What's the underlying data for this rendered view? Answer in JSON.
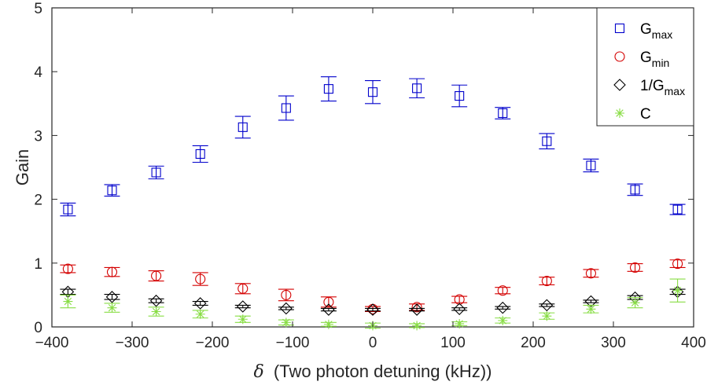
{
  "chart_data": {
    "type": "scatter",
    "xlabel_symbol": "δ",
    "xlabel": "(Two photon detuning (kHz))",
    "ylabel": "Gain",
    "xlim": [
      -400,
      400
    ],
    "ylim": [
      0,
      5
    ],
    "xticks": [
      -400,
      -300,
      -200,
      -100,
      0,
      100,
      200,
      300,
      400
    ],
    "yticks": [
      0,
      1,
      2,
      3,
      4,
      5
    ],
    "grid": false,
    "legend_position": "top-right",
    "x": [
      -380,
      -325,
      -270,
      -215,
      -162,
      -108,
      -55,
      0,
      55,
      108,
      162,
      217,
      272,
      327,
      380
    ],
    "series": [
      {
        "name": "G",
        "subscript": "max",
        "marker": "square",
        "color": "#0000cc",
        "values": [
          1.84,
          2.14,
          2.42,
          2.71,
          3.13,
          3.43,
          3.73,
          3.68,
          3.74,
          3.62,
          3.35,
          2.91,
          2.53,
          2.15,
          1.84
        ],
        "errors": [
          0.1,
          0.09,
          0.1,
          0.13,
          0.17,
          0.19,
          0.19,
          0.18,
          0.15,
          0.17,
          0.09,
          0.12,
          0.1,
          0.09,
          0.08
        ]
      },
      {
        "name": "G",
        "subscript": "min",
        "marker": "circle",
        "color": "#d40000",
        "values": [
          0.91,
          0.86,
          0.8,
          0.75,
          0.6,
          0.5,
          0.39,
          0.28,
          0.31,
          0.43,
          0.57,
          0.72,
          0.84,
          0.93,
          0.99
        ],
        "errors": [
          0.06,
          0.07,
          0.08,
          0.1,
          0.08,
          0.09,
          0.08,
          0.04,
          0.05,
          0.05,
          0.05,
          0.06,
          0.06,
          0.06,
          0.06
        ]
      },
      {
        "name": "1/G",
        "subscript": "max",
        "marker": "diamond",
        "color": "#000000",
        "values": [
          0.55,
          0.47,
          0.41,
          0.37,
          0.32,
          0.29,
          0.27,
          0.27,
          0.27,
          0.28,
          0.3,
          0.34,
          0.4,
          0.46,
          0.55
        ],
        "errors": [
          0.04,
          0.04,
          0.03,
          0.03,
          0.02,
          0.02,
          0.02,
          0.02,
          0.02,
          0.02,
          0.02,
          0.02,
          0.02,
          0.03,
          0.04
        ]
      },
      {
        "name": "C",
        "subscript": "",
        "marker": "asterisk",
        "color": "#88dd44",
        "values": [
          0.4,
          0.3,
          0.24,
          0.2,
          0.12,
          0.07,
          0.04,
          0.02,
          0.02,
          0.05,
          0.1,
          0.17,
          0.28,
          0.38,
          0.57
        ],
        "errors": [
          0.1,
          0.07,
          0.07,
          0.06,
          0.05,
          0.04,
          0.03,
          0.04,
          0.03,
          0.03,
          0.04,
          0.05,
          0.06,
          0.08,
          0.18
        ]
      }
    ]
  }
}
